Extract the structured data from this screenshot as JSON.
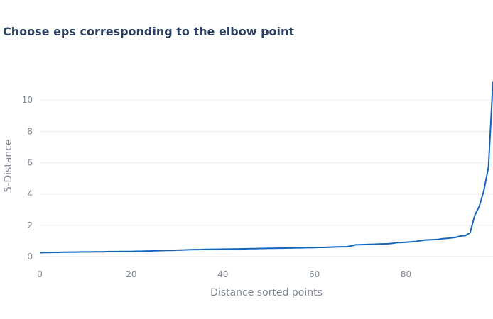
{
  "chart_data": {
    "type": "line",
    "title": "Choose eps corresponding to the elbow point",
    "xlabel": "Distance sorted points",
    "ylabel": "5-Distance",
    "xlim": [
      0,
      99
    ],
    "ylim": [
      0,
      12
    ],
    "xticks": [
      0,
      20,
      40,
      60,
      80
    ],
    "yticks": [
      0,
      2,
      4,
      6,
      8,
      10
    ],
    "grid": true,
    "color": "#1465bb",
    "series": [
      {
        "x": [
          0,
          1,
          2,
          3,
          4,
          5,
          6,
          7,
          8,
          9,
          10,
          11,
          12,
          13,
          14,
          15,
          16,
          17,
          18,
          19,
          20,
          21,
          22,
          23,
          24,
          25,
          26,
          27,
          28,
          29,
          30,
          31,
          32,
          33,
          34,
          35,
          36,
          37,
          38,
          39,
          40,
          41,
          42,
          43,
          44,
          45,
          46,
          47,
          48,
          49,
          50,
          51,
          52,
          53,
          54,
          55,
          56,
          57,
          58,
          59,
          60,
          61,
          62,
          63,
          64,
          65,
          66,
          67,
          68,
          69,
          70,
          71,
          72,
          73,
          74,
          75,
          76,
          77,
          78,
          79,
          80,
          81,
          82,
          83,
          84,
          85,
          86,
          87,
          88,
          89,
          90,
          91,
          92,
          93,
          94,
          95,
          96,
          97,
          98,
          99
        ],
        "y": [
          0.25,
          0.26,
          0.26,
          0.27,
          0.27,
          0.28,
          0.28,
          0.29,
          0.29,
          0.3,
          0.3,
          0.3,
          0.31,
          0.31,
          0.31,
          0.32,
          0.32,
          0.32,
          0.33,
          0.33,
          0.33,
          0.34,
          0.34,
          0.35,
          0.36,
          0.37,
          0.38,
          0.39,
          0.4,
          0.4,
          0.41,
          0.42,
          0.43,
          0.44,
          0.45,
          0.45,
          0.46,
          0.46,
          0.47,
          0.47,
          0.48,
          0.48,
          0.49,
          0.49,
          0.5,
          0.5,
          0.51,
          0.51,
          0.52,
          0.52,
          0.53,
          0.53,
          0.54,
          0.54,
          0.55,
          0.55,
          0.56,
          0.56,
          0.57,
          0.57,
          0.58,
          0.59,
          0.59,
          0.6,
          0.61,
          0.62,
          0.63,
          0.63,
          0.68,
          0.75,
          0.76,
          0.77,
          0.78,
          0.79,
          0.8,
          0.81,
          0.82,
          0.84,
          0.89,
          0.9,
          0.92,
          0.94,
          0.96,
          1.01,
          1.05,
          1.07,
          1.08,
          1.1,
          1.14,
          1.17,
          1.2,
          1.24,
          1.32,
          1.34,
          1.53,
          2.62,
          3.22,
          4.21,
          5.71,
          11.2
        ]
      }
    ]
  }
}
